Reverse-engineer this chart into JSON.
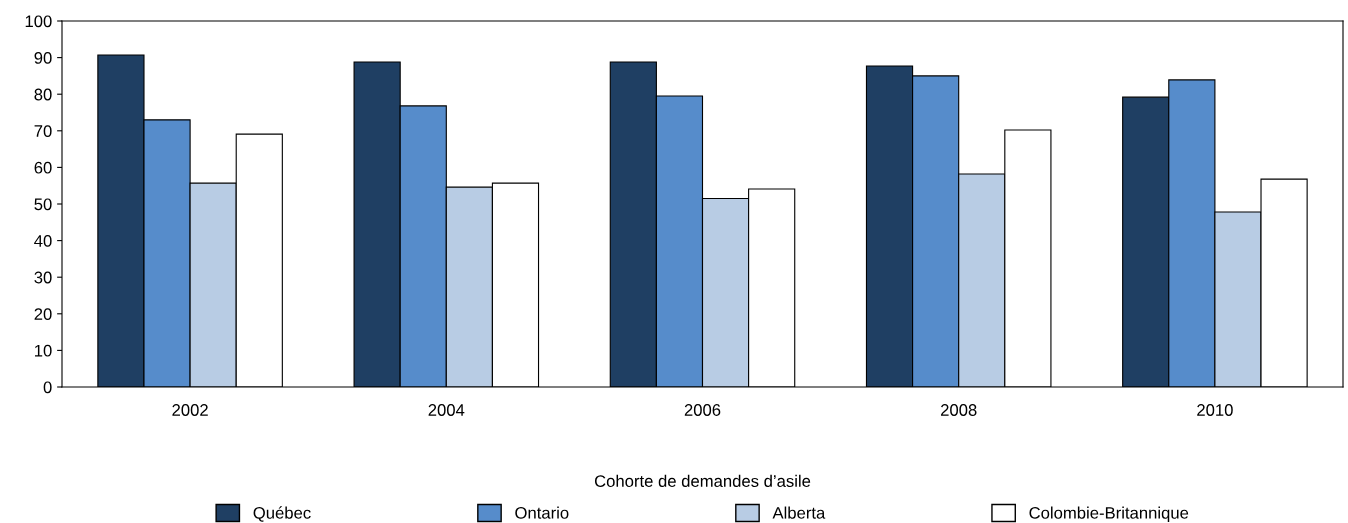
{
  "chart_data": {
    "type": "bar",
    "xlabel": "Cohorte de demandes d’asile",
    "categories": [
      "2002",
      "2004",
      "2006",
      "2008",
      "2010"
    ],
    "series": [
      {
        "name": "Québec",
        "color": "#1f3f63",
        "values": [
          90.7,
          88.8,
          88.8,
          87.7,
          79.2
        ]
      },
      {
        "name": "Ontario",
        "color": "#568ccb",
        "values": [
          73.0,
          76.8,
          79.5,
          85.0,
          83.9
        ]
      },
      {
        "name": "Alberta",
        "color": "#b8cce4",
        "values": [
          55.7,
          54.6,
          51.5,
          58.2,
          47.8
        ]
      },
      {
        "name": "Colombie-Britannique",
        "color": "#ffffff",
        "values": [
          69.1,
          55.7,
          54.1,
          70.2,
          56.8
        ]
      }
    ],
    "ylim": [
      0,
      100
    ],
    "yticks": [
      0,
      10,
      20,
      30,
      40,
      50,
      60,
      70,
      80,
      90,
      100
    ],
    "grid": false,
    "legend": "bottom"
  }
}
